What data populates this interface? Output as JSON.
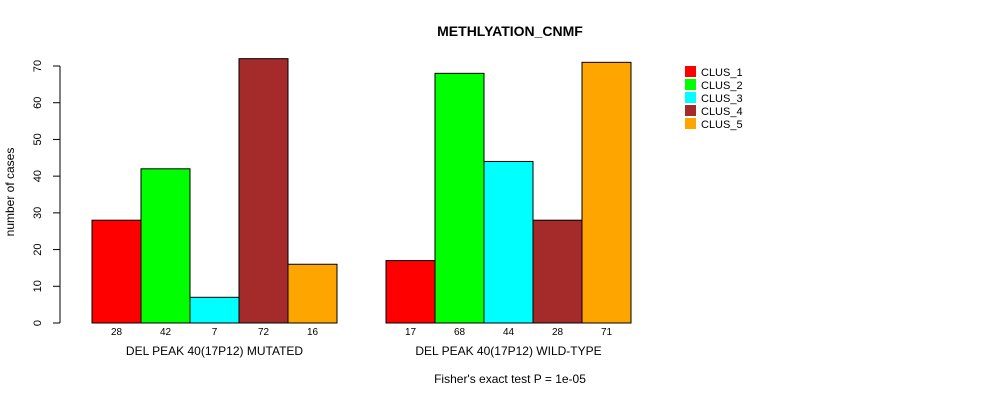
{
  "chart_data": {
    "type": "bar",
    "title": "METHLYATION_CNMF",
    "ylabel": "number of cases",
    "xlabel": "",
    "footnote": "Fisher's exact test P = 1e-05",
    "ylim": [
      0,
      70
    ],
    "yticks": [
      0,
      10,
      20,
      30,
      40,
      50,
      60,
      70
    ],
    "grid": false,
    "legend_position": "top-right",
    "groups": [
      "DEL PEAK 40(17P12) MUTATED",
      "DEL PEAK 40(17P12) WILD-TYPE"
    ],
    "series": [
      {
        "name": "CLUS_1",
        "color": "#ff0000",
        "values": [
          28,
          17
        ]
      },
      {
        "name": "CLUS_2",
        "color": "#00ff00",
        "values": [
          42,
          68
        ]
      },
      {
        "name": "CLUS_3",
        "color": "#00ffff",
        "values": [
          7,
          44
        ]
      },
      {
        "name": "CLUS_4",
        "color": "#a52a2a",
        "values": [
          72,
          28
        ]
      },
      {
        "name": "CLUS_5",
        "color": "#ffa500",
        "values": [
          16,
          71
        ]
      }
    ]
  }
}
